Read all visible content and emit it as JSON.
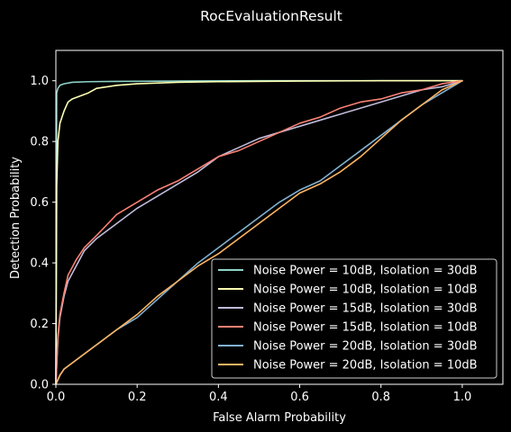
{
  "chart_data": {
    "type": "line",
    "title": "RocEvaluationResult",
    "xlabel": "False Alarm Probability",
    "ylabel": "Detection Probability",
    "xlim": [
      0,
      1.1
    ],
    "ylim": [
      0,
      1.1
    ],
    "xticks": [
      0.0,
      0.2,
      0.4,
      0.6,
      0.8,
      1.0
    ],
    "yticks": [
      0.0,
      0.2,
      0.4,
      0.6,
      0.8,
      1.0
    ],
    "xtick_labels": [
      "0.0",
      "0.2",
      "0.4",
      "0.6",
      "0.8",
      "1.0"
    ],
    "ytick_labels": [
      "0.0",
      "0.2",
      "0.4",
      "0.6",
      "0.8",
      "1.0"
    ],
    "grid": false,
    "legend_position": "bottom-right",
    "series": [
      {
        "name": "Noise Power = 10dB, Isolation = 30dB",
        "color": "#8dd3c7",
        "x": [
          0,
          0.002,
          0.005,
          0.01,
          0.02,
          0.04,
          0.08,
          0.15,
          0.3,
          0.5,
          1.0
        ],
        "y": [
          0,
          0.96,
          0.975,
          0.985,
          0.99,
          0.995,
          0.997,
          0.998,
          0.999,
          1.0,
          1.0
        ]
      },
      {
        "name": "Noise Power = 10dB, Isolation = 10dB",
        "color": "#feffb3",
        "x": [
          0,
          0.002,
          0.005,
          0.01,
          0.02,
          0.03,
          0.04,
          0.06,
          0.08,
          0.1,
          0.15,
          0.2,
          0.3,
          0.4,
          0.6,
          0.8,
          1.0
        ],
        "y": [
          0,
          0.65,
          0.8,
          0.86,
          0.9,
          0.93,
          0.94,
          0.95,
          0.96,
          0.975,
          0.985,
          0.99,
          0.995,
          0.997,
          0.999,
          1.0,
          1.0
        ]
      },
      {
        "name": "Noise Power = 15dB, Isolation = 30dB",
        "color": "#bfbbd9",
        "x": [
          0,
          0.005,
          0.01,
          0.02,
          0.03,
          0.05,
          0.07,
          0.1,
          0.15,
          0.2,
          0.25,
          0.3,
          0.35,
          0.4,
          0.45,
          0.5,
          0.55,
          0.6,
          0.65,
          0.7,
          0.75,
          0.8,
          0.85,
          0.9,
          0.95,
          1.0
        ],
        "y": [
          0,
          0.15,
          0.22,
          0.29,
          0.34,
          0.39,
          0.44,
          0.48,
          0.53,
          0.58,
          0.62,
          0.66,
          0.7,
          0.75,
          0.78,
          0.81,
          0.83,
          0.85,
          0.87,
          0.89,
          0.91,
          0.93,
          0.95,
          0.97,
          0.98,
          1.0
        ]
      },
      {
        "name": "Noise Power = 15dB, Isolation = 10dB",
        "color": "#fa8174",
        "x": [
          0,
          0.005,
          0.01,
          0.02,
          0.03,
          0.05,
          0.07,
          0.1,
          0.15,
          0.2,
          0.25,
          0.3,
          0.35,
          0.4,
          0.45,
          0.5,
          0.55,
          0.6,
          0.65,
          0.7,
          0.75,
          0.8,
          0.85,
          0.9,
          0.95,
          1.0
        ],
        "y": [
          0,
          0.16,
          0.23,
          0.3,
          0.36,
          0.41,
          0.45,
          0.49,
          0.56,
          0.6,
          0.64,
          0.67,
          0.71,
          0.75,
          0.77,
          0.8,
          0.83,
          0.86,
          0.88,
          0.91,
          0.93,
          0.94,
          0.96,
          0.97,
          0.99,
          1.0
        ]
      },
      {
        "name": "Noise Power = 20dB, Isolation = 30dB",
        "color": "#81b1d2",
        "x": [
          0,
          0.01,
          0.02,
          0.04,
          0.06,
          0.08,
          0.1,
          0.12,
          0.15,
          0.2,
          0.25,
          0.3,
          0.35,
          0.4,
          0.45,
          0.5,
          0.55,
          0.6,
          0.65,
          0.7,
          0.75,
          0.8,
          0.85,
          0.9,
          0.95,
          1.0
        ],
        "y": [
          0,
          0.03,
          0.05,
          0.07,
          0.09,
          0.11,
          0.13,
          0.15,
          0.18,
          0.22,
          0.28,
          0.34,
          0.4,
          0.45,
          0.5,
          0.55,
          0.6,
          0.64,
          0.67,
          0.72,
          0.77,
          0.82,
          0.87,
          0.92,
          0.96,
          1.0
        ]
      },
      {
        "name": "Noise Power = 20dB, Isolation = 10dB",
        "color": "#fdb462",
        "x": [
          0,
          0.01,
          0.02,
          0.04,
          0.06,
          0.08,
          0.1,
          0.12,
          0.15,
          0.2,
          0.25,
          0.3,
          0.35,
          0.4,
          0.45,
          0.5,
          0.55,
          0.6,
          0.65,
          0.7,
          0.75,
          0.8,
          0.85,
          0.9,
          0.95,
          1.0
        ],
        "y": [
          0,
          0.03,
          0.05,
          0.07,
          0.09,
          0.11,
          0.13,
          0.15,
          0.18,
          0.23,
          0.29,
          0.34,
          0.39,
          0.43,
          0.48,
          0.53,
          0.58,
          0.63,
          0.66,
          0.7,
          0.75,
          0.81,
          0.87,
          0.92,
          0.97,
          1.0
        ]
      }
    ]
  }
}
